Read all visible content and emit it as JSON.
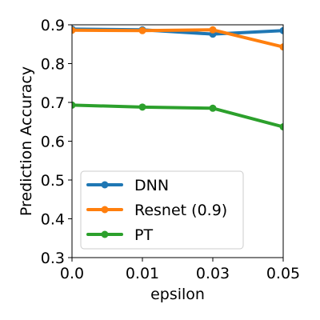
{
  "chart_data": {
    "type": "line",
    "categories": [
      "0.0",
      "0.01",
      "0.03",
      "0.05"
    ],
    "xlabel": "epsilon",
    "ylabel": "Prediction Accuracy",
    "ylim": [
      0.3,
      0.9
    ],
    "yticks": [
      "0.3",
      "0.4",
      "0.5",
      "0.6",
      "0.7",
      "0.8",
      "0.9"
    ],
    "grid": false,
    "legend_position": "lower-left",
    "series": [
      {
        "name": "DNN",
        "color": "#1f77b4",
        "values": [
          0.889,
          0.887,
          0.876,
          0.885
        ]
      },
      {
        "name": "Resnet (0.9)",
        "color": "#ff7f0e",
        "values": [
          0.886,
          0.885,
          0.887,
          0.843
        ]
      },
      {
        "name": "PT",
        "color": "#2ca02c",
        "values": [
          0.693,
          0.688,
          0.685,
          0.637
        ]
      }
    ]
  }
}
